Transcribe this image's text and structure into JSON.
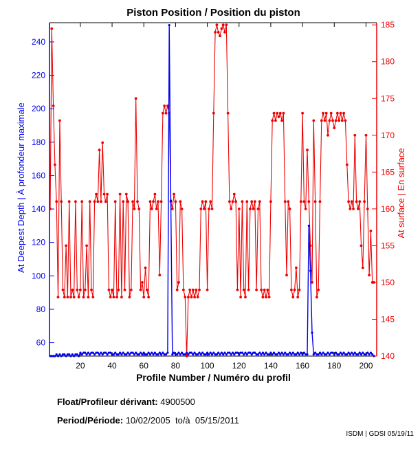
{
  "title": "Piston Position / Position du piston",
  "footer": {
    "float_label": "Float/Profileur dérivant:",
    "float_value": " 4900500",
    "period_label": "Period/Période:",
    "period_value": " 10/02/2005  to/à  05/15/2011",
    "credit": "ISDM | GDSI 05/19/11"
  },
  "colors": {
    "deep_series": "#0000ee",
    "surface_series": "#ee0000",
    "axis_box": "#000000",
    "background": "#ffffff"
  },
  "chart_data": {
    "type": "line",
    "title": "Piston Position / Position du piston",
    "xlabel": "Profile Number / Numéro du profil",
    "x_start": 1,
    "x_end": 205,
    "x_ticks": [
      20,
      40,
      60,
      80,
      100,
      120,
      140,
      160,
      180,
      200
    ],
    "grid": false,
    "legend": "none",
    "left_axis": {
      "label": "At Deepest Depth | À profondeur maximale",
      "color": "#0000ee",
      "ticks": [
        60,
        80,
        100,
        120,
        140,
        160,
        180,
        200,
        220,
        240
      ],
      "range": [
        52,
        251.5
      ]
    },
    "right_axis": {
      "label": "At surface | En surface",
      "color": "#ee0000",
      "ticks": [
        140,
        145,
        150,
        155,
        160,
        165,
        170,
        175,
        180,
        185
      ],
      "range": [
        140,
        185.3
      ]
    },
    "series": [
      {
        "name": "At surface / En surface",
        "axis": "right",
        "color": "#ee0000",
        "values": [
          160,
          184.5,
          174,
          166,
          161,
          148,
          172,
          161,
          149,
          148,
          155,
          148,
          161,
          148,
          149,
          148,
          161,
          149,
          148,
          149,
          161,
          148,
          149,
          155,
          148,
          161,
          149,
          148,
          161,
          162,
          161,
          168,
          161,
          169,
          162,
          161,
          162,
          149,
          148,
          149,
          148,
          161,
          148,
          149,
          162,
          148,
          161,
          149,
          162,
          161,
          148,
          149,
          161,
          160,
          175,
          161,
          160,
          149,
          150,
          148,
          152,
          149,
          148,
          161,
          160,
          161,
          162,
          160,
          161,
          151,
          161,
          173,
          174,
          173,
          174,
          173,
          161,
          160,
          162,
          161,
          149,
          150,
          161,
          160,
          149,
          148,
          140,
          148,
          149,
          148,
          149,
          148,
          149,
          148,
          149,
          160,
          161,
          160,
          161,
          149,
          160,
          161,
          160,
          173,
          184,
          185,
          184,
          183.5,
          184.5,
          185,
          184,
          185,
          173,
          161,
          160,
          161,
          162,
          161,
          149,
          160,
          148,
          161,
          149,
          148,
          161,
          149,
          160,
          161,
          160,
          161,
          149,
          160,
          161,
          149,
          148,
          149,
          148,
          149,
          148,
          161,
          172,
          173,
          172,
          173,
          172.5,
          173,
          172,
          173,
          161,
          151,
          161,
          160,
          149,
          148,
          149,
          152,
          148,
          149,
          161,
          173,
          161,
          160,
          168,
          161,
          155,
          150,
          172,
          161,
          148,
          149,
          161,
          172,
          173,
          172,
          173,
          170,
          172,
          173,
          172,
          171,
          172,
          173,
          172,
          173,
          172,
          173,
          172,
          166,
          161,
          160,
          161,
          160,
          170,
          161,
          160,
          161,
          155,
          152,
          161,
          170,
          160,
          151,
          157,
          150,
          150
        ]
      },
      {
        "name": "At Deepest Depth / À profondeur maximale",
        "axis": "left",
        "color": "#0000ee",
        "values": [
          50,
          52,
          51,
          52,
          53,
          52,
          53,
          52,
          53,
          53,
          52,
          53,
          53,
          52,
          53,
          52,
          53,
          53,
          52,
          54,
          53,
          54,
          54,
          53,
          54,
          53,
          54,
          54,
          53,
          54,
          54,
          53,
          54,
          53,
          54,
          54,
          53,
          54,
          54,
          53,
          53,
          54,
          53,
          53,
          54,
          53,
          54,
          53,
          53,
          54,
          53,
          54,
          54,
          53,
          54,
          53,
          53,
          54,
          53,
          54,
          53,
          53,
          54,
          53,
          54,
          53,
          54,
          53,
          53,
          54,
          53,
          54,
          53,
          53,
          54,
          250,
          145,
          53,
          54,
          53,
          53,
          54,
          53,
          54,
          53,
          53,
          54,
          53,
          54,
          54,
          53,
          54,
          53,
          53,
          54,
          53,
          54,
          53,
          53,
          54,
          53,
          54,
          53,
          54,
          53,
          53,
          54,
          53,
          54,
          53,
          54,
          53,
          54,
          54,
          53,
          54,
          53,
          54,
          54,
          53,
          54,
          54,
          53,
          54,
          53,
          54,
          54,
          53,
          54,
          54,
          53,
          53,
          54,
          53,
          54,
          53,
          54,
          53,
          53,
          54,
          53,
          54,
          53,
          53,
          54,
          53,
          54,
          53,
          54,
          53,
          53,
          54,
          53,
          54,
          53,
          53,
          54,
          53,
          54,
          53,
          54,
          53,
          53,
          130,
          103,
          66,
          53,
          54,
          53,
          53,
          54,
          53,
          54,
          53,
          53,
          54,
          53,
          54,
          54,
          53,
          54,
          53,
          53,
          54,
          53,
          54,
          53,
          53,
          54,
          53,
          54,
          53,
          54,
          53,
          53,
          54,
          53,
          54,
          53,
          53,
          54,
          53,
          54,
          53,
          52
        ]
      }
    ]
  }
}
